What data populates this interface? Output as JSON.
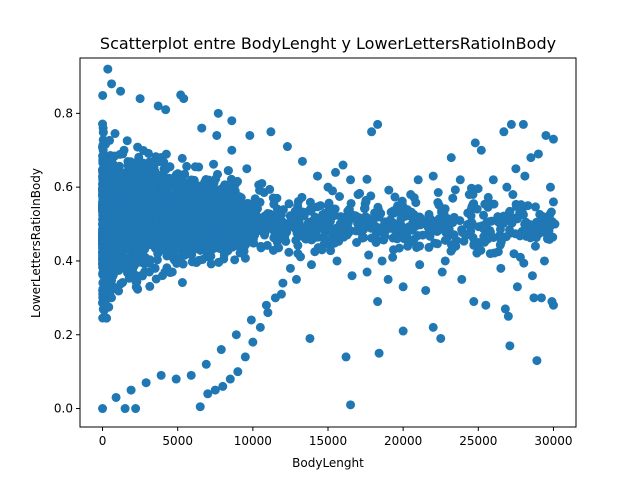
{
  "chart_data": {
    "type": "scatter",
    "title": "Scatterplot entre BodyLenght y LowerLettersRatioInBody",
    "xlabel": "BodyLenght",
    "ylabel": "LowerLettersRatioInBody",
    "xlim": [
      -1500,
      31500
    ],
    "ylim": [
      -0.05,
      0.95
    ],
    "xticks": [
      0,
      5000,
      10000,
      15000,
      20000,
      25000,
      30000
    ],
    "xtick_labels": [
      "0",
      "5000",
      "10000",
      "15000",
      "20000",
      "25000",
      "30000"
    ],
    "yticks": [
      0.0,
      0.2,
      0.4,
      0.6,
      0.8
    ],
    "ytick_labels": [
      "0.0",
      "0.2",
      "0.4",
      "0.6",
      "0.8"
    ],
    "grid": false,
    "marker_color": "#1f77b4",
    "series": [
      {
        "points": [
          [
            350,
            0.92
          ],
          [
            5200,
            0.85
          ],
          [
            5400,
            0.84
          ],
          [
            3700,
            0.82
          ],
          [
            7700,
            0.8
          ],
          [
            16500,
            0.01
          ],
          [
            6500,
            0.005
          ],
          [
            2200,
            0.0
          ],
          [
            1500,
            0.0
          ],
          [
            0,
            0.0
          ],
          [
            18300,
            0.77
          ],
          [
            17900,
            0.75
          ],
          [
            26700,
            0.75
          ],
          [
            27200,
            0.77
          ],
          [
            28000,
            0.77
          ],
          [
            29500,
            0.74
          ],
          [
            30000,
            0.73
          ],
          [
            29000,
            0.69
          ],
          [
            28500,
            0.68
          ],
          [
            27500,
            0.65
          ],
          [
            26000,
            0.62
          ],
          [
            25200,
            0.7
          ],
          [
            24800,
            0.72
          ],
          [
            23200,
            0.68
          ],
          [
            22000,
            0.63
          ],
          [
            21000,
            0.62
          ],
          [
            20500,
            0.58
          ],
          [
            19800,
            0.55
          ],
          [
            19200,
            0.5
          ],
          [
            18800,
            0.48
          ],
          [
            18200,
            0.45
          ],
          [
            17500,
            0.52
          ],
          [
            17000,
            0.58
          ],
          [
            16500,
            0.62
          ],
          [
            16000,
            0.66
          ],
          [
            15500,
            0.64
          ],
          [
            15000,
            0.6
          ],
          [
            14500,
            0.55
          ],
          [
            14000,
            0.5
          ],
          [
            13500,
            0.46
          ],
          [
            13000,
            0.42
          ],
          [
            12500,
            0.38
          ],
          [
            12000,
            0.34
          ],
          [
            11500,
            0.3
          ],
          [
            11000,
            0.26
          ],
          [
            10500,
            0.22
          ],
          [
            10000,
            0.18
          ],
          [
            9500,
            0.14
          ],
          [
            9000,
            0.1
          ],
          [
            8500,
            0.08
          ],
          [
            8000,
            0.06
          ],
          [
            7500,
            0.05
          ],
          [
            7000,
            0.04
          ],
          [
            13800,
            0.19
          ],
          [
            16200,
            0.14
          ],
          [
            18400,
            0.15
          ],
          [
            18300,
            0.29
          ],
          [
            20000,
            0.21
          ],
          [
            22000,
            0.22
          ],
          [
            22500,
            0.19
          ],
          [
            24700,
            0.29
          ],
          [
            25500,
            0.28
          ],
          [
            27000,
            0.25
          ],
          [
            27100,
            0.17
          ],
          [
            28900,
            0.13
          ],
          [
            28700,
            0.3
          ],
          [
            29200,
            0.3
          ],
          [
            29900,
            0.29
          ],
          [
            30000,
            0.28
          ],
          [
            26800,
            0.27
          ],
          [
            21500,
            0.32
          ],
          [
            20000,
            0.33
          ],
          [
            19000,
            0.35
          ],
          [
            22800,
            0.4
          ],
          [
            23500,
            0.44
          ],
          [
            24200,
            0.47
          ],
          [
            25800,
            0.42
          ],
          [
            26500,
            0.38
          ],
          [
            27800,
            0.41
          ],
          [
            28800,
            0.44
          ],
          [
            29600,
            0.46
          ],
          [
            30100,
            0.5
          ],
          [
            29300,
            0.52
          ],
          [
            28300,
            0.55
          ],
          [
            27300,
            0.58
          ],
          [
            26300,
            0.52
          ],
          [
            25300,
            0.49
          ],
          [
            24300,
            0.53
          ],
          [
            23300,
            0.57
          ],
          [
            22300,
            0.5
          ],
          [
            21300,
            0.47
          ],
          [
            20300,
            0.44
          ],
          [
            19300,
            0.41
          ],
          [
            18600,
            0.4
          ],
          [
            17600,
            0.37
          ],
          [
            16600,
            0.36
          ],
          [
            15600,
            0.4
          ],
          [
            14600,
            0.43
          ],
          [
            13600,
            0.47
          ],
          [
            12600,
            0.52
          ],
          [
            11600,
            0.57
          ],
          [
            10600,
            0.61
          ],
          [
            9600,
            0.65
          ],
          [
            8600,
            0.7
          ],
          [
            7600,
            0.74
          ],
          [
            6600,
            0.76
          ],
          [
            11200,
            0.75
          ],
          [
            12300,
            0.71
          ],
          [
            13300,
            0.67
          ],
          [
            14300,
            0.63
          ],
          [
            15300,
            0.59
          ],
          [
            17300,
            0.49
          ],
          [
            21700,
            0.52
          ],
          [
            23800,
            0.62
          ],
          [
            24400,
            0.58
          ],
          [
            25600,
            0.55
          ],
          [
            26900,
            0.6
          ],
          [
            28100,
            0.63
          ],
          [
            29800,
            0.6
          ],
          [
            30000,
            0.56
          ],
          [
            29400,
            0.4
          ],
          [
            28600,
            0.36
          ],
          [
            27600,
            0.33
          ],
          [
            26600,
            0.46
          ],
          [
            25000,
            0.45
          ],
          [
            23900,
            0.35
          ],
          [
            22600,
            0.37
          ],
          [
            21100,
            0.39
          ],
          [
            20700,
            0.49
          ],
          [
            19600,
            0.46
          ],
          [
            18100,
            0.53
          ],
          [
            16900,
            0.45
          ],
          [
            15900,
            0.48
          ],
          [
            14900,
            0.51
          ],
          [
            13900,
            0.39
          ],
          [
            12900,
            0.35
          ],
          [
            11900,
            0.31
          ],
          [
            10900,
            0.28
          ],
          [
            9900,
            0.24
          ],
          [
            8900,
            0.2
          ],
          [
            7900,
            0.16
          ],
          [
            6900,
            0.12
          ],
          [
            5900,
            0.09
          ],
          [
            4900,
            0.08
          ],
          [
            3900,
            0.09
          ],
          [
            2900,
            0.07
          ],
          [
            1900,
            0.05
          ],
          [
            900,
            0.03
          ],
          [
            600,
            0.88
          ],
          [
            1200,
            0.86
          ],
          [
            2500,
            0.84
          ],
          [
            4200,
            0.81
          ],
          [
            8600,
            0.78
          ],
          [
            9800,
            0.74
          ]
        ]
      }
    ],
    "dense_cluster": {
      "x_range": [
        0,
        9000
      ],
      "y_range": [
        0.0,
        0.88
      ],
      "description_note": ""
    }
  }
}
